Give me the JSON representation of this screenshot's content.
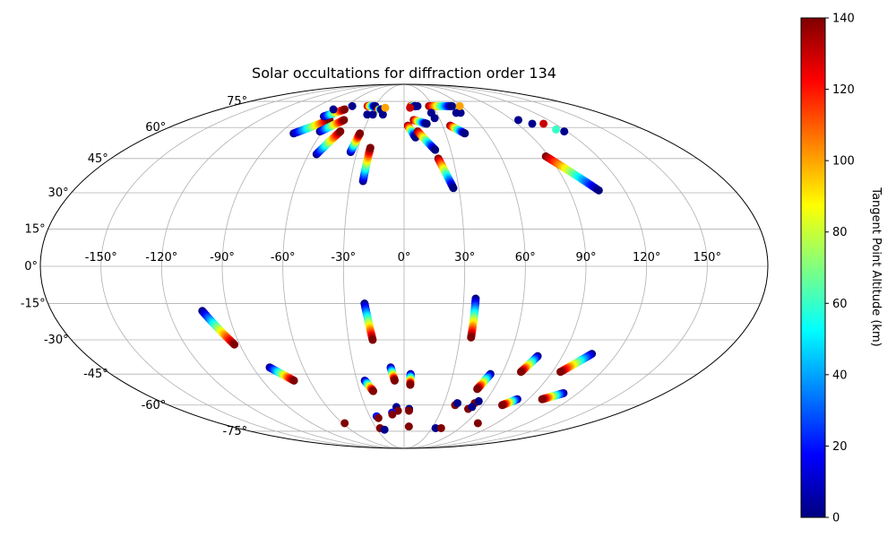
{
  "chart_data": {
    "type": "scatter",
    "projection": "mollweide",
    "title": "Solar occultations for diffraction order 134",
    "lon_ticks": [
      "-150°",
      "-120°",
      "-90°",
      "-60°",
      "-30°",
      "0°",
      "30°",
      "60°",
      "90°",
      "120°",
      "150°"
    ],
    "lon_values": [
      -150,
      -120,
      -90,
      -60,
      -30,
      0,
      30,
      60,
      90,
      120,
      150
    ],
    "lat_ticks": [
      "75°",
      "60°",
      "45°",
      "30°",
      "15°",
      "0°",
      "-15°",
      "-30°",
      "-45°",
      "-60°",
      "-75°"
    ],
    "lat_values": [
      75,
      60,
      45,
      30,
      15,
      0,
      -15,
      -30,
      -45,
      -60,
      -75
    ],
    "grid": true,
    "colorbar": {
      "label": "Tangent Point Altitude (km)",
      "colormap": "jet",
      "range": [
        0,
        140
      ],
      "ticks": [
        "0",
        "20",
        "40",
        "60",
        "80",
        "100",
        "120",
        "140"
      ],
      "tick_values": [
        0,
        20,
        40,
        60,
        80,
        100,
        120,
        140
      ]
    },
    "tracks": [
      {
        "lon_start": -80,
        "lat_start": 57,
        "lon_end": -62,
        "lat_end": 64,
        "alt_start": 0,
        "alt_end": 140
      },
      {
        "lon_start": -70,
        "lat_start": 66,
        "lon_end": -58,
        "lat_end": 70,
        "alt_start": 0,
        "alt_end": 140
      },
      {
        "lon_start": -62,
        "lat_start": 58,
        "lon_end": -50,
        "lat_end": 64,
        "alt_start": 0,
        "alt_end": 140
      },
      {
        "lon_start": -55,
        "lat_start": 47,
        "lon_end": -47,
        "lat_end": 58,
        "alt_start": 0,
        "alt_end": 140
      },
      {
        "lon_start": -34,
        "lat_start": 48,
        "lon_end": -32,
        "lat_end": 57,
        "alt_start": 0,
        "alt_end": 140
      },
      {
        "lon_start": -23,
        "lat_start": 35,
        "lon_end": -22,
        "lat_end": 50,
        "alt_start": 0,
        "alt_end": 140
      },
      {
        "lon_start": -38,
        "lat_start": 72,
        "lon_end": -30,
        "lat_end": 72,
        "alt_start": 140,
        "alt_end": 0
      },
      {
        "lon_start": -25,
        "lat_start": 70,
        "lon_end": -22,
        "lat_end": 70,
        "alt_start": 140,
        "alt_end": 0
      },
      {
        "lon_start": 3,
        "lat_start": 61,
        "lon_end": 8,
        "lat_end": 55,
        "alt_start": 140,
        "alt_end": 0
      },
      {
        "lon_start": 10,
        "lat_start": 58,
        "lon_end": 20,
        "lat_end": 49,
        "alt_start": 140,
        "alt_end": 0
      },
      {
        "lon_start": 21,
        "lat_start": 45,
        "lon_end": 27,
        "lat_end": 32,
        "alt_start": 140,
        "alt_end": 0
      },
      {
        "lon_start": 7,
        "lat_start": 72,
        "lon_end": 12,
        "lat_end": 72,
        "alt_start": 140,
        "alt_end": 0
      },
      {
        "lon_start": 8,
        "lat_start": 64,
        "lon_end": 18,
        "lat_end": 62,
        "alt_start": 140,
        "alt_end": 0
      },
      {
        "lon_start": 26,
        "lat_start": 72,
        "lon_end": 50,
        "lat_end": 72,
        "alt_start": 140,
        "alt_end": 0
      },
      {
        "lon_start": 36,
        "lat_start": 61,
        "lon_end": 44,
        "lat_end": 57,
        "alt_start": 140,
        "alt_end": 0
      },
      {
        "lon_start": 88,
        "lat_start": 46,
        "lon_end": 106,
        "lat_end": 31,
        "alt_start": 140,
        "alt_end": 0
      },
      {
        "lon_start": -103,
        "lat_start": -18,
        "lon_end": -93,
        "lat_end": -32,
        "alt_start": 0,
        "alt_end": 140
      },
      {
        "lon_start": -20,
        "lat_start": -15,
        "lon_end": -17,
        "lat_end": -30,
        "alt_start": 0,
        "alt_end": 140
      },
      {
        "lon_start": 36,
        "lat_start": -13,
        "lon_end": 36,
        "lat_end": -29,
        "alt_start": 0,
        "alt_end": 140
      },
      {
        "lon_start": -80,
        "lat_start": -42,
        "lon_end": -70,
        "lat_end": -48,
        "alt_start": 0,
        "alt_end": 140
      },
      {
        "lon_start": -25,
        "lat_start": -48,
        "lon_end": -21,
        "lat_end": -53,
        "alt_start": 0,
        "alt_end": 140
      },
      {
        "lon_start": -8,
        "lat_start": -42,
        "lon_end": -6,
        "lat_end": -48,
        "alt_start": 0,
        "alt_end": 140
      },
      {
        "lon_start": 4,
        "lat_start": -45,
        "lon_end": 4,
        "lat_end": -50,
        "alt_start": 0,
        "alt_end": 140
      },
      {
        "lon_start": 76,
        "lat_start": -37,
        "lon_end": 71,
        "lat_end": -44,
        "alt_start": 0,
        "alt_end": 140
      },
      {
        "lon_start": 106,
        "lat_start": -36,
        "lon_end": 95,
        "lat_end": -44,
        "alt_start": 0,
        "alt_end": 140
      },
      {
        "lon_start": 53,
        "lat_start": -45,
        "lon_end": 49,
        "lat_end": -52,
        "alt_start": 0,
        "alt_end": 140
      },
      {
        "lon_start": 110,
        "lat_start": -54,
        "lon_end": 100,
        "lat_end": -57,
        "alt_start": 0,
        "alt_end": 140
      },
      {
        "lon_start": 82,
        "lat_start": -57,
        "lon_end": 75,
        "lat_end": -60,
        "alt_start": 0,
        "alt_end": 140
      }
    ],
    "points": [
      {
        "lon": -69,
        "lat": 70,
        "alt": 2
      },
      {
        "lon": -54,
        "lat": 72,
        "alt": 2
      },
      {
        "lon": -28,
        "lat": 67,
        "alt": 2
      },
      {
        "lon": -33,
        "lat": 67,
        "alt": 2
      },
      {
        "lon": -19,
        "lat": 67,
        "alt": 2
      },
      {
        "lon": 25,
        "lat": 68,
        "alt": 2
      },
      {
        "lon": 26,
        "lat": 65,
        "alt": 2
      },
      {
        "lon": 14,
        "lat": 72,
        "alt": 2
      },
      {
        "lon": 48,
        "lat": 68,
        "alt": 2
      },
      {
        "lon": 52,
        "lat": 68,
        "alt": 2
      },
      {
        "lon": 95,
        "lat": 64,
        "alt": 2
      },
      {
        "lon": 102,
        "lat": 62,
        "alt": 2
      },
      {
        "lon": 118,
        "lat": 58,
        "alt": 2
      },
      {
        "lon": 114,
        "lat": 59,
        "alt": 60
      },
      {
        "lon": 111,
        "lat": 62,
        "alt": 130
      },
      {
        "lon": 58,
        "lat": 72,
        "alt": 100
      },
      {
        "lon": 6,
        "lat": 71,
        "alt": 130
      },
      {
        "lon": -19,
        "lat": 71,
        "alt": 100
      },
      {
        "lon": -6,
        "lat": -61,
        "alt": 2
      },
      {
        "lon": -5,
        "lat": -63,
        "alt": 140
      },
      {
        "lon": -10,
        "lat": -64,
        "alt": 20
      },
      {
        "lon": -10,
        "lat": -65,
        "alt": 140
      },
      {
        "lon": 4,
        "lat": -62,
        "alt": 2
      },
      {
        "lon": 4,
        "lat": -63,
        "alt": 140
      },
      {
        "lon": -24,
        "lat": -66,
        "alt": 20
      },
      {
        "lon": -23,
        "lat": -67,
        "alt": 140
      },
      {
        "lon": -26,
        "lat": -73,
        "alt": 140
      },
      {
        "lon": -22,
        "lat": -74,
        "alt": 2
      },
      {
        "lon": 5,
        "lat": -72,
        "alt": 140
      },
      {
        "lon": 34,
        "lat": -73,
        "alt": 2
      },
      {
        "lon": 40,
        "lat": -73,
        "alt": 140
      },
      {
        "lon": 39,
        "lat": -60,
        "alt": 140
      },
      {
        "lon": 40,
        "lat": -59,
        "alt": 2
      },
      {
        "lon": 53,
        "lat": -59,
        "alt": 140
      },
      {
        "lon": 55,
        "lat": -58,
        "alt": 2
      },
      {
        "lon": 51,
        "lat": -62,
        "alt": 140
      },
      {
        "lon": 53,
        "lat": -61,
        "alt": 2
      },
      {
        "lon": 72,
        "lat": -70,
        "alt": 140
      },
      {
        "lon": -58,
        "lat": -70,
        "alt": 140
      }
    ]
  }
}
